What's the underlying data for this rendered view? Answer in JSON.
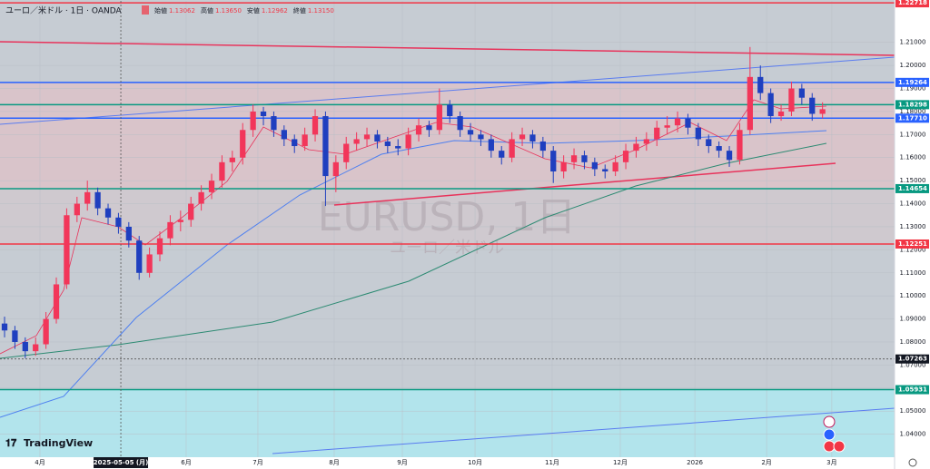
{
  "chart_data": {
    "type": "candlestick",
    "title": "ユーロ／米ドル · 1日 · OANDA",
    "readout": [
      {
        "name": "始値",
        "value": 1.13062,
        "value_label": "1.13062"
      },
      {
        "name": "高値",
        "value": 1.1365,
        "value_label": "1.13650"
      },
      {
        "name": "安値",
        "value": 1.12962,
        "value_label": "1.12962"
      },
      {
        "name": "終値",
        "value": 1.1315,
        "value_label": "1.13150"
      }
    ],
    "watermark": "EURUSD, 1日",
    "watermark_sub": "ユーロ／米ドル",
    "brand": "TradingView",
    "up_color": "#f2365a",
    "down_color": "#1f3fbf",
    "ylim": [
      1.03,
      1.228
    ],
    "yticks": [
      {
        "value": 1.04,
        "label": "1.04000"
      },
      {
        "value": 1.05,
        "label": "1.05000"
      },
      {
        "value": 1.06,
        "label": "1.06000"
      },
      {
        "value": 1.07,
        "label": "1.07000"
      },
      {
        "value": 1.08,
        "label": "1.08000"
      },
      {
        "value": 1.09,
        "label": "1.09000"
      },
      {
        "value": 1.1,
        "label": "1.10000"
      },
      {
        "value": 1.11,
        "label": "1.11000"
      },
      {
        "value": 1.12,
        "label": "1.12000"
      },
      {
        "value": 1.13,
        "label": "1.13000"
      },
      {
        "value": 1.14,
        "label": "1.14000"
      },
      {
        "value": 1.15,
        "label": "1.15000"
      },
      {
        "value": 1.16,
        "label": "1.16000"
      },
      {
        "value": 1.17,
        "label": "1.17000"
      },
      {
        "value": 1.18,
        "label": "1.18000"
      },
      {
        "value": 1.19,
        "label": "1.19000"
      },
      {
        "value": 1.2,
        "label": "1.20000"
      },
      {
        "value": 1.21,
        "label": "1.21000"
      }
    ],
    "xlim": [
      -0.44,
      85.96
    ],
    "xticks": [
      {
        "value": 3.42,
        "label": "4月"
      },
      {
        "value": 17.54,
        "label": "6月"
      },
      {
        "value": 24.47,
        "label": "7月"
      },
      {
        "value": 31.84,
        "label": "8月"
      },
      {
        "value": 38.42,
        "label": "9月"
      },
      {
        "value": 45.44,
        "label": "10月"
      },
      {
        "value": 52.89,
        "label": "11月"
      },
      {
        "value": 59.47,
        "label": "12月"
      },
      {
        "value": 66.67,
        "label": "2026"
      },
      {
        "value": 73.6,
        "label": "2月"
      },
      {
        "value": 79.9,
        "label": "3月"
      }
    ],
    "crosshair": {
      "x": {
        "value": 11.23,
        "label": "2025-05-05 (月)"
      },
      "y": {
        "value": 1.07263,
        "label": "1.07263"
      }
    },
    "levels": [
      {
        "value": 1.22718,
        "label": "1.22718",
        "color": "#f23645"
      },
      {
        "value": 1.19264,
        "label": "1.19264",
        "color": "#2962ff"
      },
      {
        "value": 1.18298,
        "label": "1.18298",
        "color": "#089981"
      },
      {
        "value": 1.1771,
        "label": "1.17710",
        "color": "#2962ff"
      },
      {
        "value": 1.14654,
        "label": "1.14654",
        "color": "#089981"
      },
      {
        "value": 1.12251,
        "label": "1.12251",
        "color": "#f23645"
      },
      {
        "value": 1.05931,
        "label": "1.05931",
        "color": "#089981"
      }
    ],
    "ohlc": [
      [
        1.088,
        1.091,
        1.082,
        1.085
      ],
      [
        1.085,
        1.087,
        1.077,
        1.08
      ],
      [
        1.08,
        1.082,
        1.073,
        1.076
      ],
      [
        1.076,
        1.082,
        1.074,
        1.079
      ],
      [
        1.079,
        1.093,
        1.077,
        1.09
      ],
      [
        1.09,
        1.108,
        1.088,
        1.105
      ],
      [
        1.105,
        1.138,
        1.103,
        1.135
      ],
      [
        1.135,
        1.143,
        1.132,
        1.14
      ],
      [
        1.14,
        1.15,
        1.137,
        1.145
      ],
      [
        1.145,
        1.147,
        1.135,
        1.138
      ],
      [
        1.138,
        1.14,
        1.131,
        1.134
      ],
      [
        1.134,
        1.136,
        1.127,
        1.13
      ],
      [
        1.13,
        1.132,
        1.121,
        1.124
      ],
      [
        1.124,
        1.126,
        1.107,
        1.11
      ],
      [
        1.11,
        1.121,
        1.108,
        1.118
      ],
      [
        1.118,
        1.128,
        1.115,
        1.125
      ],
      [
        1.125,
        1.135,
        1.122,
        1.132
      ],
      [
        1.132,
        1.137,
        1.128,
        1.133
      ],
      [
        1.133,
        1.143,
        1.13,
        1.14
      ],
      [
        1.14,
        1.148,
        1.137,
        1.145
      ],
      [
        1.145,
        1.153,
        1.142,
        1.15
      ],
      [
        1.15,
        1.161,
        1.147,
        1.158
      ],
      [
        1.158,
        1.163,
        1.154,
        1.16
      ],
      [
        1.16,
        1.175,
        1.157,
        1.172
      ],
      [
        1.172,
        1.183,
        1.169,
        1.18
      ],
      [
        1.18,
        1.182,
        1.174,
        1.178
      ],
      [
        1.178,
        1.18,
        1.169,
        1.172
      ],
      [
        1.172,
        1.174,
        1.165,
        1.168
      ],
      [
        1.168,
        1.17,
        1.162,
        1.165
      ],
      [
        1.165,
        1.173,
        1.163,
        1.17
      ],
      [
        1.17,
        1.181,
        1.167,
        1.178
      ],
      [
        1.178,
        1.18,
        1.139,
        1.152
      ],
      [
        1.152,
        1.161,
        1.145,
        1.158
      ],
      [
        1.158,
        1.169,
        1.155,
        1.166
      ],
      [
        1.166,
        1.171,
        1.163,
        1.168
      ],
      [
        1.168,
        1.173,
        1.165,
        1.17
      ],
      [
        1.17,
        1.172,
        1.164,
        1.167
      ],
      [
        1.167,
        1.169,
        1.162,
        1.165
      ],
      [
        1.165,
        1.168,
        1.161,
        1.164
      ],
      [
        1.164,
        1.173,
        1.161,
        1.17
      ],
      [
        1.17,
        1.177,
        1.167,
        1.174
      ],
      [
        1.174,
        1.176,
        1.169,
        1.172
      ],
      [
        1.172,
        1.19,
        1.17,
        1.183
      ],
      [
        1.183,
        1.185,
        1.175,
        1.178
      ],
      [
        1.178,
        1.18,
        1.169,
        1.172
      ],
      [
        1.172,
        1.175,
        1.167,
        1.17
      ],
      [
        1.17,
        1.172,
        1.165,
        1.168
      ],
      [
        1.168,
        1.17,
        1.16,
        1.163
      ],
      [
        1.163,
        1.165,
        1.157,
        1.16
      ],
      [
        1.16,
        1.171,
        1.158,
        1.168
      ],
      [
        1.168,
        1.173,
        1.165,
        1.17
      ],
      [
        1.17,
        1.172,
        1.164,
        1.167
      ],
      [
        1.167,
        1.169,
        1.16,
        1.163
      ],
      [
        1.163,
        1.165,
        1.149,
        1.154
      ],
      [
        1.154,
        1.161,
        1.151,
        1.158
      ],
      [
        1.158,
        1.164,
        1.155,
        1.161
      ],
      [
        1.161,
        1.163,
        1.155,
        1.158
      ],
      [
        1.158,
        1.16,
        1.152,
        1.155
      ],
      [
        1.155,
        1.157,
        1.151,
        1.154
      ],
      [
        1.154,
        1.161,
        1.152,
        1.158
      ],
      [
        1.158,
        1.166,
        1.155,
        1.163
      ],
      [
        1.163,
        1.169,
        1.16,
        1.166
      ],
      [
        1.166,
        1.171,
        1.163,
        1.168
      ],
      [
        1.168,
        1.176,
        1.165,
        1.173
      ],
      [
        1.173,
        1.178,
        1.17,
        1.174
      ],
      [
        1.174,
        1.18,
        1.171,
        1.177
      ],
      [
        1.177,
        1.179,
        1.17,
        1.173
      ],
      [
        1.173,
        1.175,
        1.165,
        1.168
      ],
      [
        1.168,
        1.17,
        1.162,
        1.165
      ],
      [
        1.165,
        1.167,
        1.16,
        1.163
      ],
      [
        1.163,
        1.165,
        1.156,
        1.159
      ],
      [
        1.159,
        1.175,
        1.157,
        1.172
      ],
      [
        1.172,
        1.208,
        1.17,
        1.195
      ],
      [
        1.195,
        1.2,
        1.185,
        1.188
      ],
      [
        1.188,
        1.19,
        1.175,
        1.178
      ],
      [
        1.178,
        1.183,
        1.176,
        1.18
      ],
      [
        1.18,
        1.193,
        1.178,
        1.19
      ],
      [
        1.19,
        1.192,
        1.183,
        1.186
      ],
      [
        1.186,
        1.188,
        1.176,
        1.179
      ],
      [
        1.179,
        1.184,
        1.177,
        1.181
      ]
    ]
  }
}
